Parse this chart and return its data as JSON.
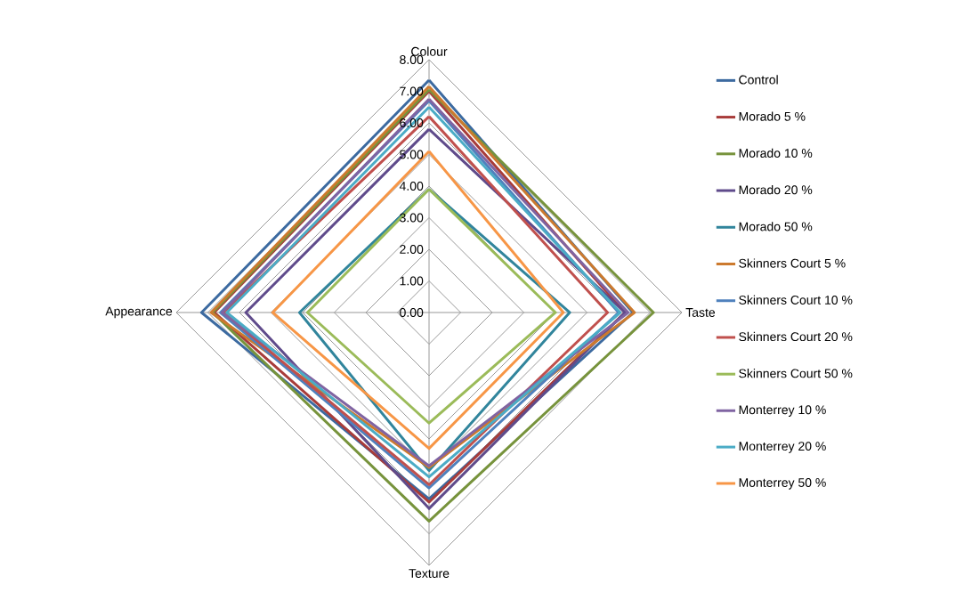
{
  "chart_data": {
    "type": "radar",
    "categories": [
      "Colour",
      "Taste",
      "Texture",
      "Appearance"
    ],
    "ylim": [
      0,
      8
    ],
    "yticks": [
      {
        "value": 0,
        "label": "0.00"
      },
      {
        "value": 1,
        "label": "1.00"
      },
      {
        "value": 2,
        "label": "2.00"
      },
      {
        "value": 3,
        "label": "3.00"
      },
      {
        "value": 4,
        "label": "4.00"
      },
      {
        "value": 5,
        "label": "5.00"
      },
      {
        "value": 6,
        "label": "6.00"
      },
      {
        "value": 7,
        "label": "7.00"
      },
      {
        "value": 8,
        "label": "8.00"
      }
    ],
    "grid": true,
    "legend": "right",
    "series": [
      {
        "name": "Control",
        "color": "#3C6AA0",
        "values": [
          7.35,
          6.45,
          5.9,
          7.2
        ]
      },
      {
        "name": "Morado 5 %",
        "color": "#A83C3A",
        "values": [
          7.0,
          6.2,
          6.0,
          6.8
        ]
      },
      {
        "name": "Morado 10 %",
        "color": "#77933C",
        "values": [
          7.05,
          7.1,
          6.6,
          6.85
        ]
      },
      {
        "name": "Morado 20 %",
        "color": "#5F4B8B",
        "values": [
          5.8,
          6.2,
          6.2,
          5.8
        ]
      },
      {
        "name": "Morado 50 %",
        "color": "#31859C",
        "values": [
          3.9,
          4.45,
          5.0,
          4.1
        ]
      },
      {
        "name": "Skinners Court 5 %",
        "color": "#CC7A2E",
        "values": [
          7.15,
          6.5,
          4.9,
          6.9
        ]
      },
      {
        "name": "Skinners Court 10 %",
        "color": "#4F81BD",
        "values": [
          6.7,
          6.0,
          5.55,
          6.6
        ]
      },
      {
        "name": "Skinners Court 20 %",
        "color": "#C0504D",
        "values": [
          6.2,
          5.65,
          5.45,
          6.5
        ]
      },
      {
        "name": "Skinners Court 50 %",
        "color": "#9BBB59",
        "values": [
          3.9,
          4.0,
          3.5,
          3.85
        ]
      },
      {
        "name": "Monterrey 10 %",
        "color": "#8064A2",
        "values": [
          6.75,
          6.3,
          4.85,
          6.55
        ]
      },
      {
        "name": "Monterrey 20 %",
        "color": "#4BACC6",
        "values": [
          6.5,
          6.05,
          5.2,
          6.4
        ]
      },
      {
        "name": "Monterrey 50 %",
        "color": "#F79646",
        "values": [
          5.1,
          4.25,
          4.3,
          4.95
        ]
      }
    ]
  }
}
